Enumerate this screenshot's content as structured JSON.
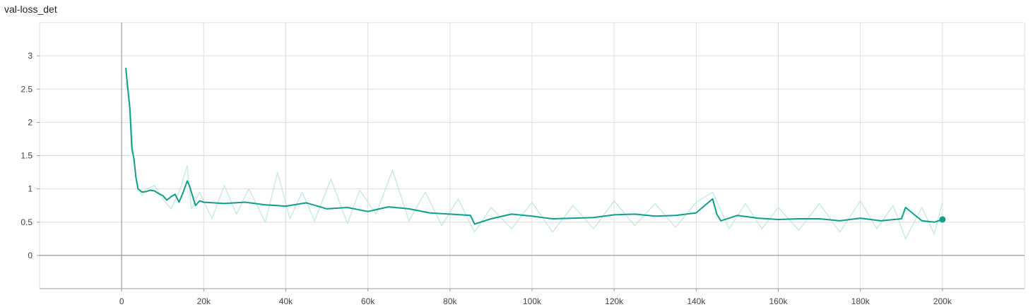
{
  "chart_data": {
    "type": "line",
    "title": "val-loss_det",
    "xlabel": "",
    "ylabel": "",
    "xlim": [
      -20000,
      220000
    ],
    "ylim": [
      -0.5,
      3.5
    ],
    "x_ticks": [
      0,
      20000,
      40000,
      60000,
      80000,
      100000,
      120000,
      140000,
      160000,
      180000,
      200000
    ],
    "x_tick_labels": [
      "0",
      "20k",
      "40k",
      "60k",
      "80k",
      "100k",
      "120k",
      "140k",
      "160k",
      "180k",
      "200k"
    ],
    "y_ticks": [
      0,
      0.5,
      1,
      1.5,
      2,
      2.5,
      3
    ],
    "y_tick_labels": [
      "0",
      "0.5",
      "1",
      "1.5",
      "2",
      "2.5",
      "3"
    ],
    "grid": true,
    "legend": "none",
    "colors": {
      "smoothed": "#109e8a",
      "raw": "#b8e3dc",
      "axis": "#999999",
      "grid": "#dddddd"
    },
    "series": [
      {
        "role": "smoothed",
        "x": [
          1000,
          2000,
          2500,
          3000,
          3500,
          4000,
          5000,
          6000,
          7000,
          8000,
          9000,
          10000,
          11000,
          12000,
          13000,
          14000,
          15000,
          16000,
          16500,
          17000,
          18000,
          19000,
          20000,
          25000,
          30000,
          35000,
          40000,
          45000,
          50000,
          55000,
          60000,
          65000,
          70000,
          75000,
          80000,
          85000,
          86000,
          90000,
          95000,
          100000,
          105000,
          110000,
          115000,
          120000,
          125000,
          130000,
          135000,
          140000,
          144000,
          145000,
          146000,
          150000,
          155000,
          160000,
          165000,
          170000,
          175000,
          180000,
          185000,
          190000,
          191000,
          195000,
          198000,
          200000
        ],
        "y": [
          2.82,
          2.2,
          1.6,
          1.45,
          1.16,
          1.0,
          0.95,
          0.96,
          0.98,
          0.97,
          0.93,
          0.9,
          0.83,
          0.88,
          0.92,
          0.8,
          0.95,
          1.12,
          1.05,
          0.95,
          0.75,
          0.82,
          0.8,
          0.78,
          0.8,
          0.76,
          0.74,
          0.79,
          0.7,
          0.72,
          0.66,
          0.73,
          0.7,
          0.64,
          0.62,
          0.6,
          0.47,
          0.55,
          0.62,
          0.59,
          0.55,
          0.56,
          0.57,
          0.61,
          0.62,
          0.59,
          0.6,
          0.64,
          0.85,
          0.62,
          0.52,
          0.6,
          0.56,
          0.54,
          0.55,
          0.55,
          0.52,
          0.56,
          0.52,
          0.55,
          0.72,
          0.52,
          0.5,
          0.54
        ]
      },
      {
        "role": "raw",
        "x": [
          1000,
          2000,
          3000,
          4000,
          5000,
          6000,
          8000,
          10000,
          12000,
          14000,
          16000,
          17000,
          19000,
          22000,
          25000,
          28000,
          31000,
          35000,
          38000,
          41000,
          44000,
          47000,
          51000,
          55000,
          58000,
          62000,
          66000,
          70000,
          74000,
          78000,
          82000,
          86000,
          90000,
          95000,
          100000,
          105000,
          110000,
          115000,
          120000,
          125000,
          130000,
          135000,
          140000,
          144000,
          148000,
          152000,
          156000,
          160000,
          165000,
          170000,
          175000,
          180000,
          184000,
          188000,
          191000,
          195000,
          198000,
          200000
        ],
        "y": [
          2.6,
          2.3,
          1.4,
          1.0,
          0.9,
          1.0,
          1.05,
          0.85,
          0.7,
          0.95,
          1.35,
          0.7,
          0.95,
          0.55,
          1.05,
          0.62,
          1.0,
          0.5,
          1.25,
          0.55,
          0.95,
          0.52,
          1.15,
          0.48,
          0.98,
          0.62,
          1.28,
          0.52,
          0.95,
          0.45,
          0.85,
          0.35,
          0.72,
          0.4,
          0.8,
          0.35,
          0.75,
          0.4,
          0.82,
          0.45,
          0.78,
          0.42,
          0.8,
          0.95,
          0.4,
          0.78,
          0.4,
          0.72,
          0.38,
          0.78,
          0.35,
          0.82,
          0.4,
          0.75,
          0.25,
          0.72,
          0.32,
          0.8
        ]
      }
    ],
    "last_point": {
      "x": 200000,
      "y": 0.54
    }
  }
}
